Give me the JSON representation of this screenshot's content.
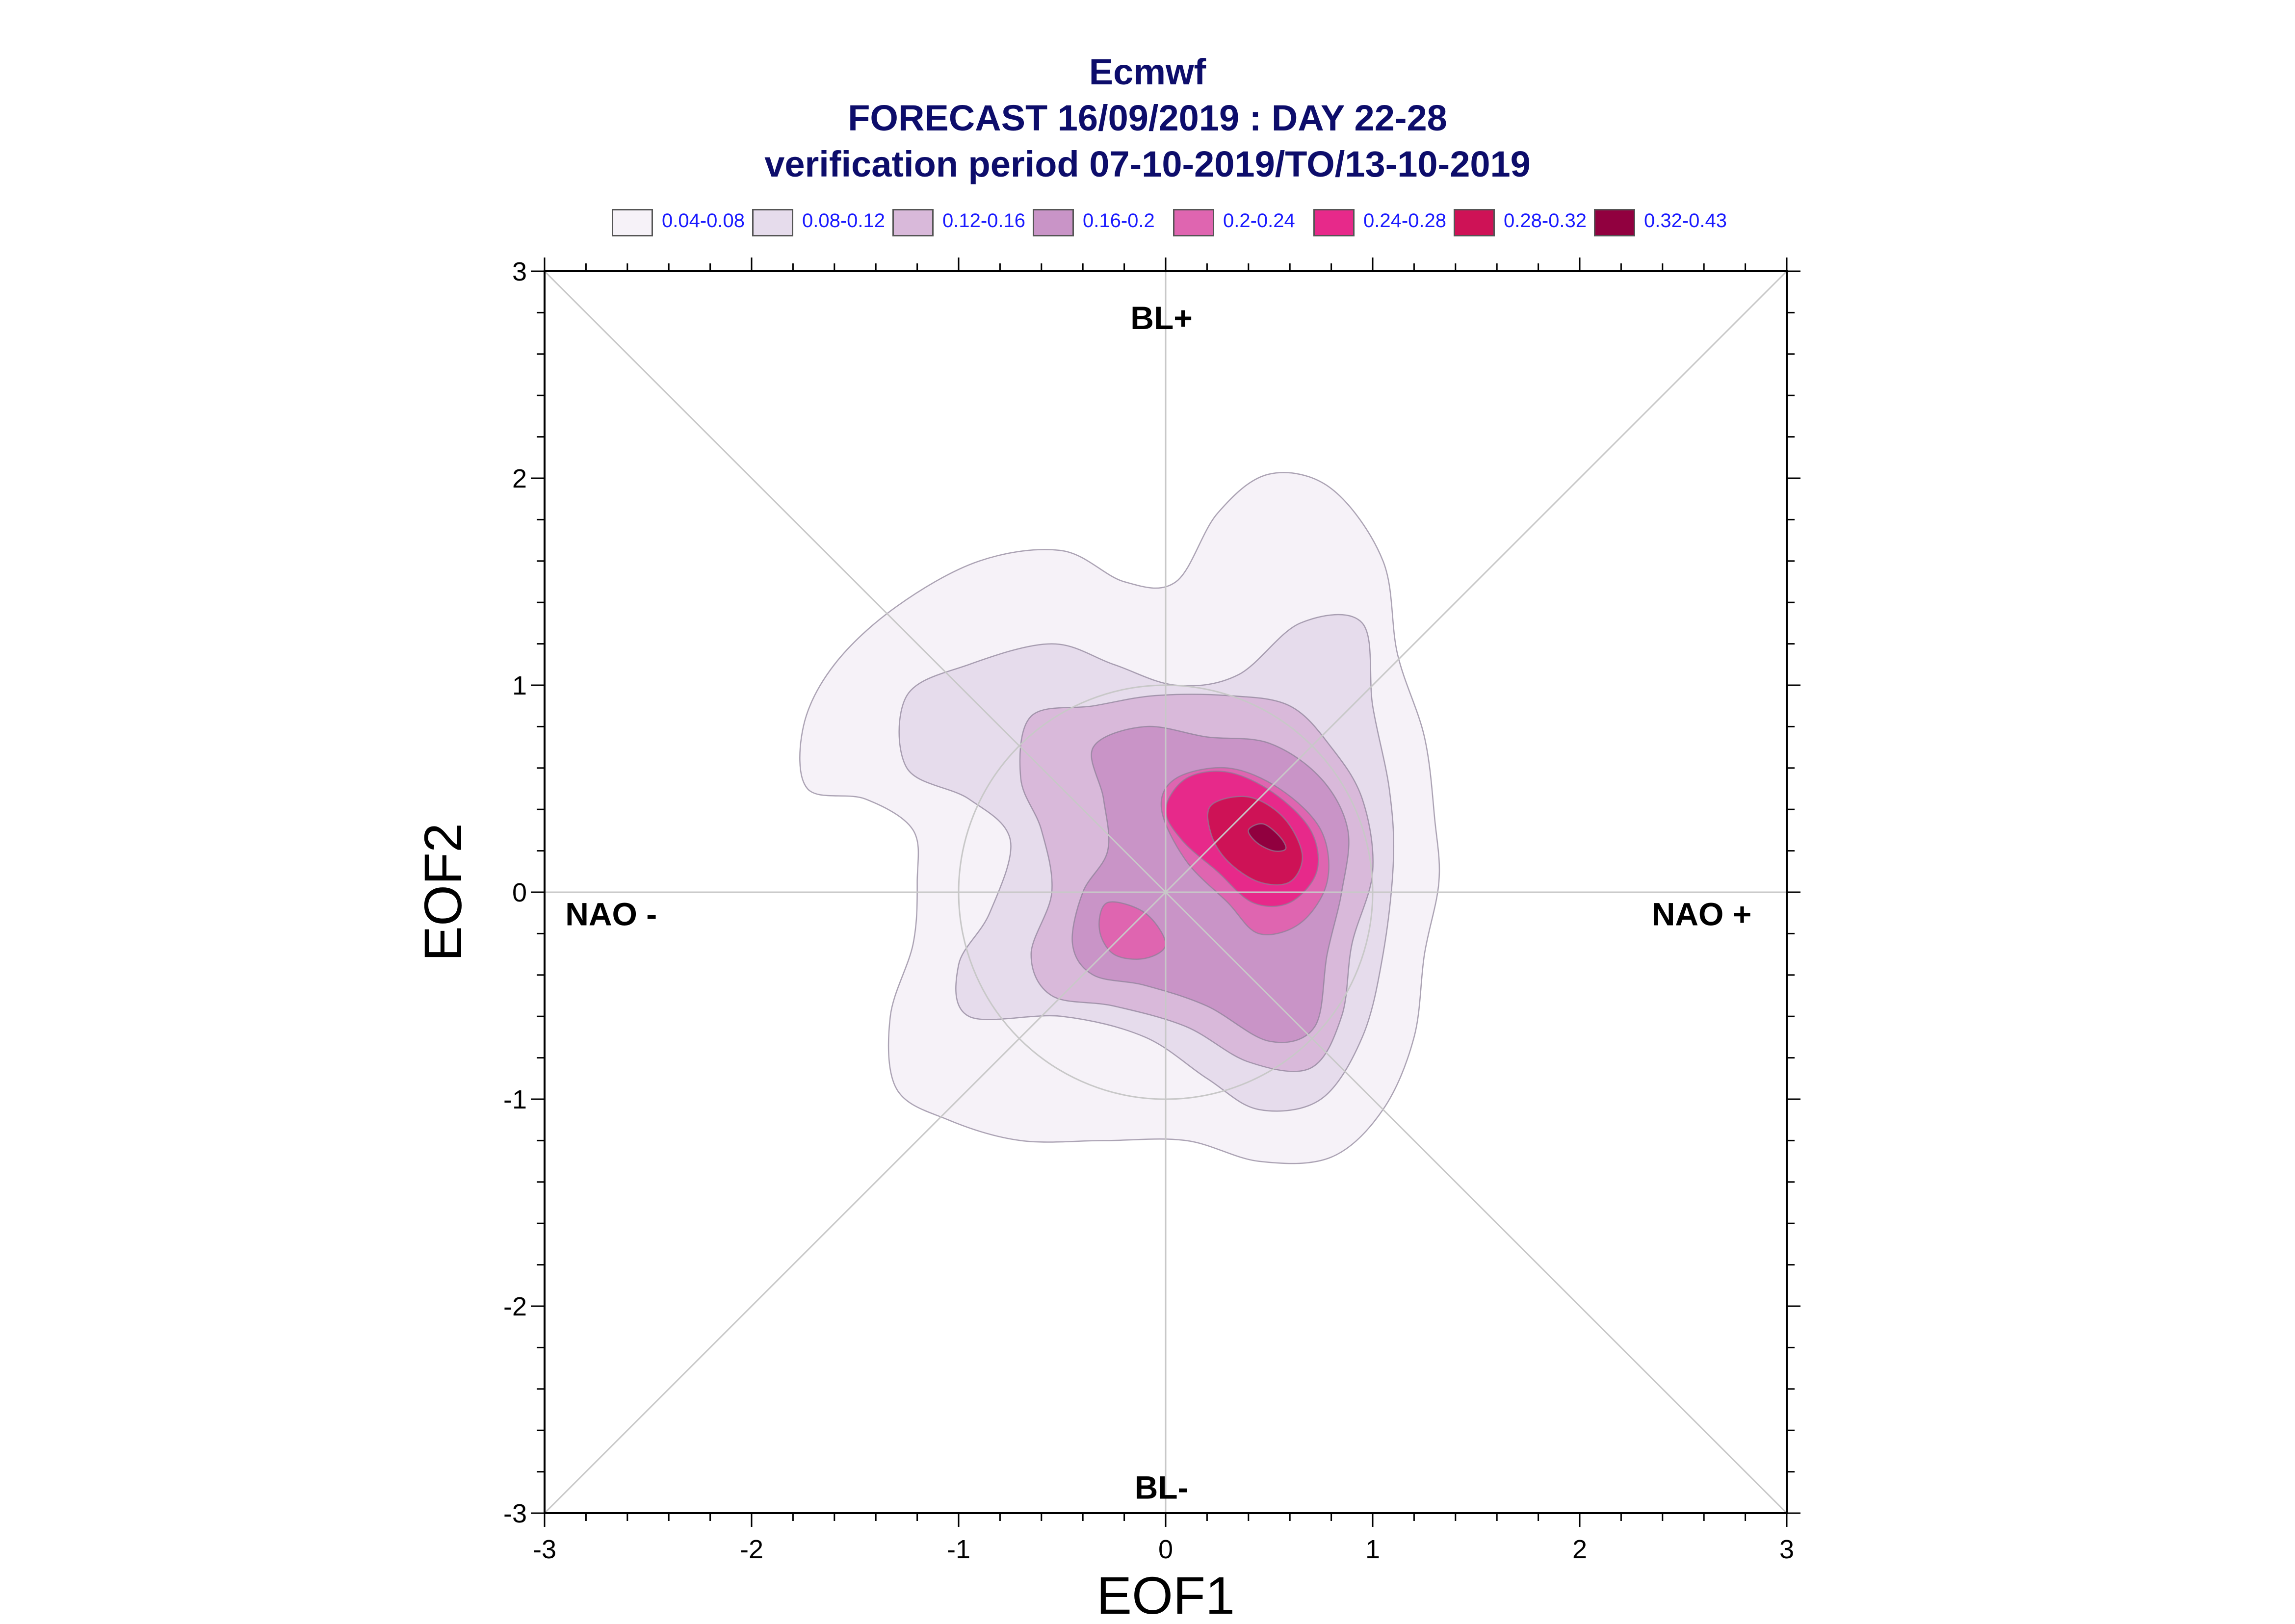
{
  "chart_data": {
    "type": "heatmap",
    "title_lines": [
      "Ecmwf",
      "FORECAST 16/09/2019 : DAY 22-28",
      "verification period 07-10-2019/TO/13-10-2019"
    ],
    "xlabel": "EOF1",
    "ylabel": "EOF2",
    "xlim": [
      -3,
      3
    ],
    "ylim": [
      -3,
      3
    ],
    "x_ticks": [
      -3,
      -2,
      -1,
      0,
      1,
      2,
      3
    ],
    "y_ticks": [
      -3,
      -2,
      -1,
      0,
      1,
      2,
      3
    ],
    "x_tick_labels": [
      "-3",
      "-2",
      "-1",
      "0",
      "1",
      "2",
      "3"
    ],
    "y_tick_labels": [
      "-3",
      "-2",
      "-1",
      "0",
      "1",
      "2",
      "3"
    ],
    "legend_position": "top",
    "levels": [
      {
        "label": "0.04-0.08",
        "color": "#f6f2f8"
      },
      {
        "label": "0.08-0.12",
        "color": "#e6dcec"
      },
      {
        "label": "0.12-0.16",
        "color": "#d9b9da"
      },
      {
        "label": "0.16-0.2",
        "color": "#c994c7"
      },
      {
        "label": "0.2-0.24",
        "color": "#df65b0"
      },
      {
        "label": "0.24-0.28",
        "color": "#e7298a"
      },
      {
        "label": "0.28-0.32",
        "color": "#ce1256"
      },
      {
        "label": "0.32-0.43",
        "color": "#91003f"
      }
    ],
    "regime_labels": {
      "top": "BL+",
      "bottom": "BL-",
      "left": "NAO -",
      "right": "NAO +"
    },
    "reference_circle_radius": 1,
    "diagonals": true,
    "zero_lines": true,
    "density_peak": {
      "x": 0.5,
      "y": 0.3,
      "value_range": "0.32-0.43"
    },
    "contours": [
      {
        "level": 0,
        "points": [
          [
            -1.05,
            -1.1
          ],
          [
            -1.3,
            -0.95
          ],
          [
            -1.33,
            -0.6
          ],
          [
            -1.22,
            -0.25
          ],
          [
            -1.2,
            0.05
          ],
          [
            -1.22,
            0.3
          ],
          [
            -1.45,
            0.45
          ],
          [
            -1.73,
            0.5
          ],
          [
            -1.75,
            0.8
          ],
          [
            -1.6,
            1.1
          ],
          [
            -1.3,
            1.38
          ],
          [
            -0.9,
            1.6
          ],
          [
            -0.5,
            1.65
          ],
          [
            -0.2,
            1.5
          ],
          [
            0.05,
            1.5
          ],
          [
            0.25,
            1.83
          ],
          [
            0.5,
            2.02
          ],
          [
            0.8,
            1.95
          ],
          [
            1.05,
            1.6
          ],
          [
            1.12,
            1.15
          ],
          [
            1.25,
            0.75
          ],
          [
            1.3,
            0.35
          ],
          [
            1.32,
            0.05
          ],
          [
            1.25,
            -0.3
          ],
          [
            1.2,
            -0.7
          ],
          [
            1.05,
            -1.05
          ],
          [
            0.8,
            -1.28
          ],
          [
            0.45,
            -1.3
          ],
          [
            0.1,
            -1.2
          ],
          [
            -0.3,
            -1.2
          ],
          [
            -0.7,
            -1.2
          ]
        ]
      },
      {
        "level": 1,
        "points": [
          [
            -0.95,
            -0.6
          ],
          [
            -1.0,
            -0.35
          ],
          [
            -0.85,
            -0.1
          ],
          [
            -0.75,
            0.25
          ],
          [
            -0.95,
            0.45
          ],
          [
            -1.25,
            0.6
          ],
          [
            -1.25,
            0.95
          ],
          [
            -0.95,
            1.1
          ],
          [
            -0.55,
            1.2
          ],
          [
            -0.25,
            1.1
          ],
          [
            0.05,
            1.0
          ],
          [
            0.35,
            1.05
          ],
          [
            0.65,
            1.3
          ],
          [
            0.95,
            1.3
          ],
          [
            1.0,
            0.9
          ],
          [
            1.08,
            0.5
          ],
          [
            1.1,
            0.15
          ],
          [
            1.05,
            -0.3
          ],
          [
            0.95,
            -0.7
          ],
          [
            0.75,
            -1.0
          ],
          [
            0.45,
            -1.05
          ],
          [
            0.2,
            -0.9
          ],
          [
            -0.1,
            -0.7
          ],
          [
            -0.5,
            -0.6
          ]
        ]
      },
      {
        "level": 2,
        "points": [
          [
            -0.65,
            -0.3
          ],
          [
            -0.55,
            0.0
          ],
          [
            -0.6,
            0.3
          ],
          [
            -0.7,
            0.55
          ],
          [
            -0.65,
            0.85
          ],
          [
            -0.35,
            0.9
          ],
          [
            -0.05,
            0.95
          ],
          [
            0.3,
            0.95
          ],
          [
            0.6,
            0.9
          ],
          [
            0.8,
            0.7
          ],
          [
            0.95,
            0.45
          ],
          [
            1.0,
            0.1
          ],
          [
            0.9,
            -0.25
          ],
          [
            0.85,
            -0.6
          ],
          [
            0.7,
            -0.85
          ],
          [
            0.4,
            -0.82
          ],
          [
            0.1,
            -0.65
          ],
          [
            -0.25,
            -0.55
          ],
          [
            -0.55,
            -0.5
          ]
        ]
      },
      {
        "level": 3,
        "points": [
          [
            -0.45,
            -0.25
          ],
          [
            -0.4,
            0.0
          ],
          [
            -0.28,
            0.2
          ],
          [
            -0.3,
            0.45
          ],
          [
            -0.35,
            0.7
          ],
          [
            -0.1,
            0.8
          ],
          [
            0.2,
            0.75
          ],
          [
            0.5,
            0.72
          ],
          [
            0.75,
            0.55
          ],
          [
            0.88,
            0.3
          ],
          [
            0.85,
            0.0
          ],
          [
            0.78,
            -0.3
          ],
          [
            0.72,
            -0.65
          ],
          [
            0.5,
            -0.72
          ],
          [
            0.2,
            -0.55
          ],
          [
            -0.1,
            -0.45
          ],
          [
            -0.35,
            -0.4
          ]
        ]
      },
      {
        "level": 4,
        "points": [
          [
            -0.28,
            -0.05
          ],
          [
            -0.1,
            -0.1
          ],
          [
            0.0,
            -0.25
          ],
          [
            -0.1,
            -0.32
          ],
          [
            -0.25,
            -0.3
          ],
          [
            -0.32,
            -0.18
          ]
        ]
      },
      {
        "level": 4,
        "points": [
          [
            -0.02,
            0.4
          ],
          [
            0.05,
            0.55
          ],
          [
            0.3,
            0.6
          ],
          [
            0.55,
            0.5
          ],
          [
            0.75,
            0.3
          ],
          [
            0.78,
            0.05
          ],
          [
            0.65,
            -0.15
          ],
          [
            0.45,
            -0.2
          ],
          [
            0.3,
            -0.05
          ],
          [
            0.1,
            0.15
          ]
        ]
      },
      {
        "level": 5,
        "points": [
          [
            0.0,
            0.4
          ],
          [
            0.1,
            0.55
          ],
          [
            0.3,
            0.58
          ],
          [
            0.52,
            0.48
          ],
          [
            0.7,
            0.3
          ],
          [
            0.73,
            0.1
          ],
          [
            0.6,
            -0.05
          ],
          [
            0.42,
            -0.05
          ],
          [
            0.25,
            0.1
          ],
          [
            0.08,
            0.25
          ]
        ]
      },
      {
        "level": 6,
        "points": [
          [
            0.22,
            0.42
          ],
          [
            0.4,
            0.46
          ],
          [
            0.57,
            0.36
          ],
          [
            0.66,
            0.18
          ],
          [
            0.6,
            0.05
          ],
          [
            0.45,
            0.05
          ],
          [
            0.3,
            0.15
          ],
          [
            0.22,
            0.28
          ]
        ]
      },
      {
        "level": 7,
        "points": [
          [
            0.4,
            0.3
          ],
          [
            0.47,
            0.33
          ],
          [
            0.55,
            0.27
          ],
          [
            0.58,
            0.21
          ],
          [
            0.52,
            0.2
          ],
          [
            0.44,
            0.24
          ]
        ]
      }
    ]
  }
}
